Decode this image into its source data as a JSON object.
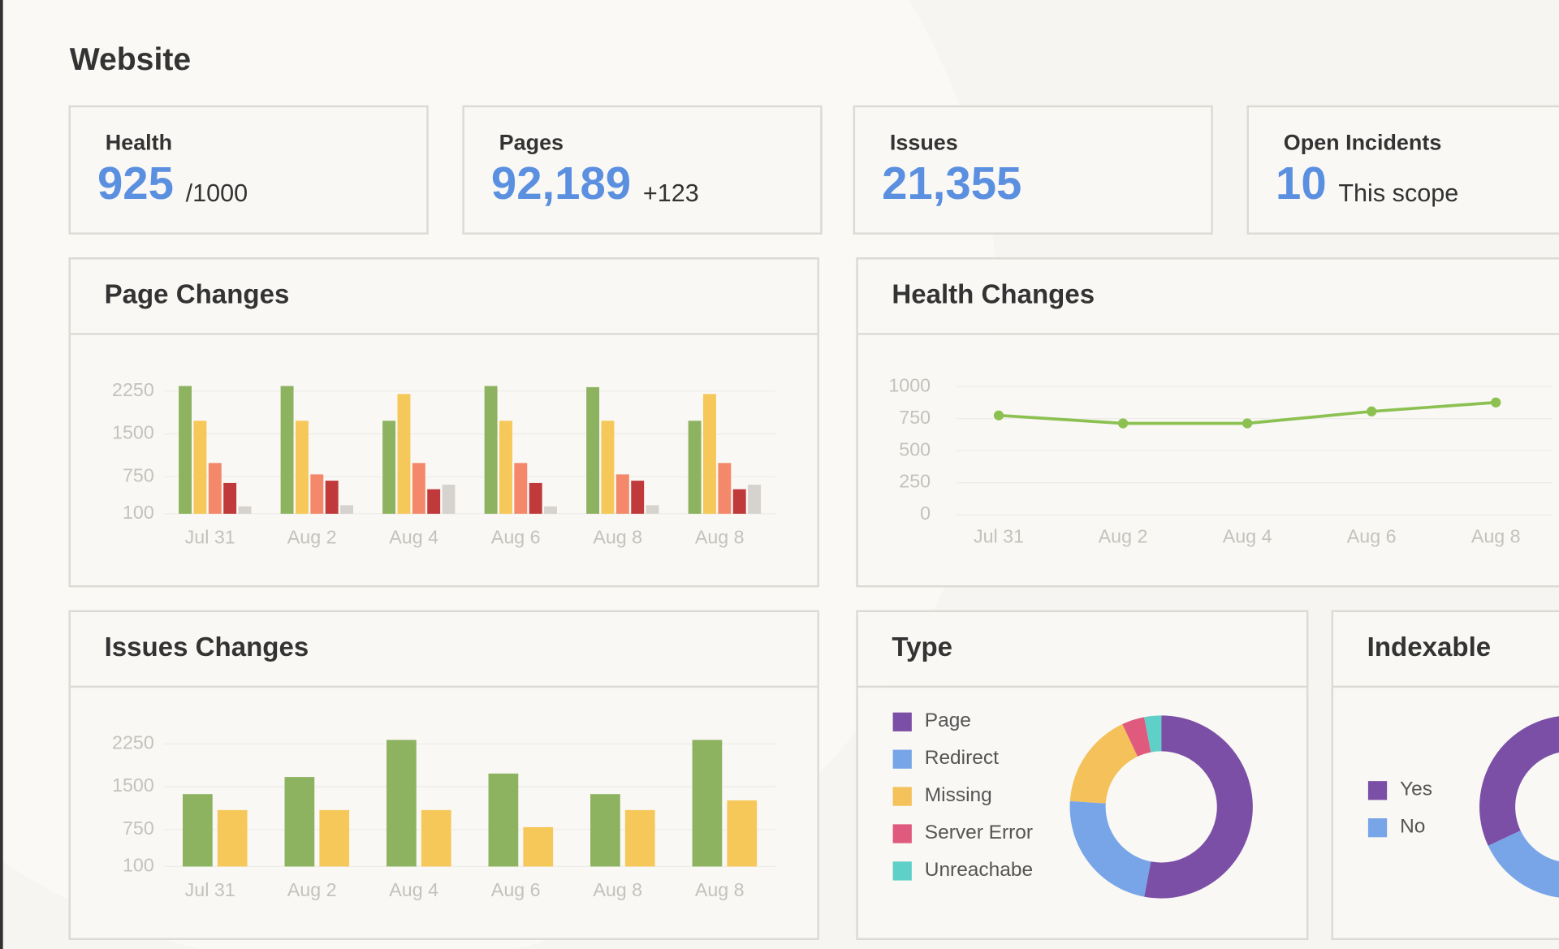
{
  "title": "Website",
  "kpis": [
    {
      "label": "Health",
      "value": "925",
      "note": "/1000"
    },
    {
      "label": "Pages",
      "value": "92,189",
      "note": "+123"
    },
    {
      "label": "Issues",
      "value": "21,355"
    },
    {
      "label": "Open Incidents",
      "value": "10",
      "note": "This scope"
    }
  ],
  "chart_data": [
    {
      "type": "bar",
      "title": "Page Changes",
      "categories": [
        "Jul 31",
        "Aug 2",
        "Aug 4",
        "Aug 6",
        "Aug 8",
        "Aug 8"
      ],
      "series": [
        {
          "color": "#8db360",
          "values": [
            2340,
            2340,
            1730,
            2340,
            2320,
            1730
          ]
        },
        {
          "color": "#f6c85a",
          "values": [
            1730,
            1730,
            2200,
            1730,
            1730,
            2200
          ]
        },
        {
          "color": "#f3896a",
          "values": [
            990,
            790,
            990,
            990,
            790,
            990
          ]
        },
        {
          "color": "#c0393b",
          "values": [
            640,
            680,
            530,
            640,
            680,
            530
          ]
        },
        {
          "color": "#d6d3cf",
          "values": [
            230,
            250,
            610,
            230,
            250,
            610
          ]
        }
      ],
      "ylim": [
        100,
        2400
      ],
      "yticks": [
        100,
        750,
        1500,
        2250
      ],
      "grid": true
    },
    {
      "type": "line",
      "title": "Health Changes",
      "categories": [
        "Jul 31",
        "Aug 2",
        "Aug 4",
        "Aug 6",
        "Aug 8"
      ],
      "series": [
        {
          "color": "#8cc152",
          "values": [
            775,
            713,
            713,
            806,
            876
          ]
        }
      ],
      "ylim": [
        0,
        1000
      ],
      "yticks": [
        0,
        250,
        500,
        750,
        1000
      ],
      "grid": true
    },
    {
      "type": "bar",
      "title": "Issues Changes",
      "categories": [
        "Jul 31",
        "Aug 2",
        "Aug 4",
        "Aug 6",
        "Aug 8",
        "Aug 8"
      ],
      "series": [
        {
          "color": "#8db360",
          "values": [
            1370,
            1670,
            2320,
            1730,
            1370,
            2320
          ]
        },
        {
          "color": "#f6c85a",
          "values": [
            1090,
            1090,
            1090,
            790,
            1090,
            1260
          ]
        }
      ],
      "ylim": [
        100,
        2400
      ],
      "yticks": [
        100,
        750,
        1500,
        2250
      ],
      "grid": true
    },
    {
      "type": "pie",
      "title": "Type",
      "categories": [
        "Page",
        "Redirect",
        "Missing",
        "Server Error",
        "Unreachabe"
      ],
      "values": [
        53,
        23,
        17,
        4,
        3
      ],
      "colors": [
        "#7b4fa6",
        "#77a5e8",
        "#f4c15a",
        "#e05a7e",
        "#5fd0c8"
      ]
    },
    {
      "type": "pie",
      "title": "Indexable",
      "categories": [
        "Yes",
        "No"
      ],
      "values": [
        32,
        68
      ],
      "colors": [
        "#7b4fa6",
        "#77a5e8"
      ]
    }
  ]
}
